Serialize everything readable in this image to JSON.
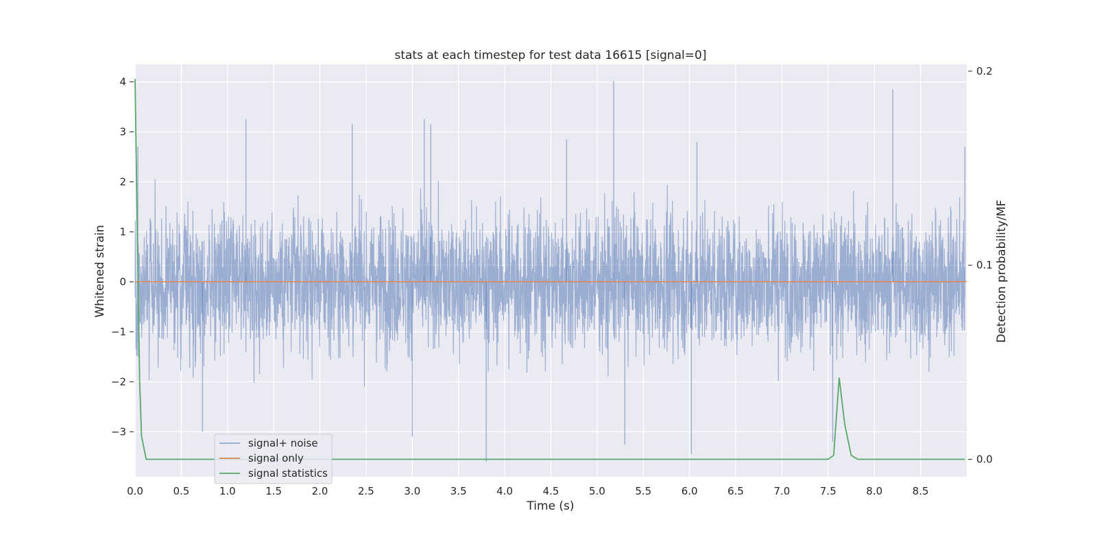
{
  "chart_data": {
    "type": "line",
    "title": "stats at each timestep for test data 16615 [signal=0]",
    "xlabel": "Time (s)",
    "ylabel": "Whitened strain",
    "y2label": "Detection probability/MF",
    "xlim": [
      0.0,
      9.0
    ],
    "ylim": [
      -3.9,
      4.35
    ],
    "y2lim": [
      -0.009,
      0.2035
    ],
    "xticks": [
      "0.0",
      "0.5",
      "1.0",
      "1.5",
      "2.0",
      "2.5",
      "3.0",
      "3.5",
      "4.0",
      "4.5",
      "5.0",
      "5.5",
      "6.0",
      "6.5",
      "7.0",
      "7.5",
      "8.0",
      "8.5"
    ],
    "yticks": [
      "−3",
      "−2",
      "−1",
      "0",
      "1",
      "2",
      "3",
      "4"
    ],
    "y2ticks": [
      "0.0",
      "0.1",
      "0.2"
    ],
    "grid": true,
    "legend_position": "lower left",
    "colors": {
      "signal_noise": "#4c72b0",
      "signal_only": "#dd8452",
      "signal_statistics": "#55a868",
      "background": "#eaeaf2"
    },
    "series": [
      {
        "name": "signal+ noise",
        "axis": "left",
        "description_values": "dense whitened noise oscillating roughly between -2.5 and 2.7, peaks near 4.0 at t=5.18 and 3.85 at t=8.2, dips to -3.6 at t=3.8",
        "peaks": [
          {
            "x": 0.03,
            "y": 2.7
          },
          {
            "x": 1.2,
            "y": 3.25
          },
          {
            "x": 2.35,
            "y": 3.15
          },
          {
            "x": 3.13,
            "y": 3.25
          },
          {
            "x": 3.2,
            "y": 3.15
          },
          {
            "x": 4.67,
            "y": 2.85
          },
          {
            "x": 5.18,
            "y": 4.02
          },
          {
            "x": 6.08,
            "y": 2.8
          },
          {
            "x": 8.2,
            "y": 3.85
          },
          {
            "x": 8.98,
            "y": 2.7
          }
        ],
        "troughs": [
          {
            "x": 0.73,
            "y": -3.0
          },
          {
            "x": 3.0,
            "y": -3.1
          },
          {
            "x": 3.8,
            "y": -3.6
          },
          {
            "x": 5.3,
            "y": -3.25
          },
          {
            "x": 6.02,
            "y": -3.45
          },
          {
            "x": 7.55,
            "y": -3.2
          }
        ]
      },
      {
        "name": "signal only",
        "axis": "left",
        "x": [
          0.0,
          9.0
        ],
        "y": [
          0.0,
          0.0
        ]
      },
      {
        "name": "signal statistics",
        "axis": "right",
        "x": [
          0.0,
          0.02,
          0.05,
          0.07,
          0.12,
          7.5,
          7.56,
          7.62,
          7.68,
          7.75,
          7.82,
          8.98
        ],
        "y": [
          0.196,
          0.13,
          0.04,
          0.012,
          0.0,
          0.0,
          0.002,
          0.042,
          0.018,
          0.002,
          0.0,
          0.0
        ]
      }
    ]
  }
}
